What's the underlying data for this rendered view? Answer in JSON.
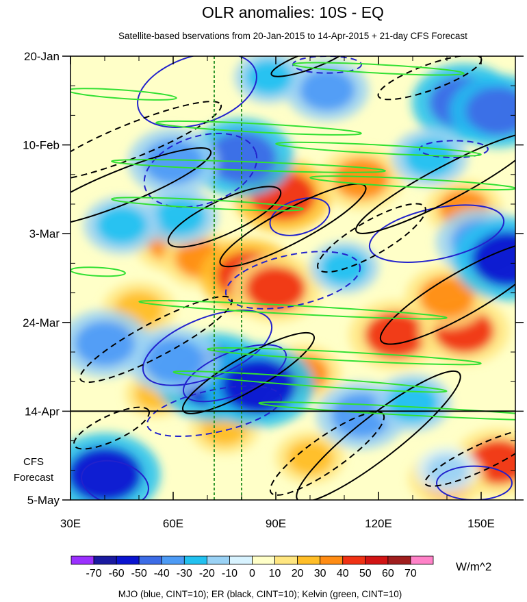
{
  "chart_data": {
    "type": "heatmap",
    "title": "OLR anomalies: 10S - EQ",
    "subtitle": "Satellite-based bservations from 20-Jan-2015 to 14-Apr-2015 + 21-day CFS Forecast",
    "x_axis": {
      "range": [
        30,
        160
      ],
      "ticks": [
        30,
        60,
        90,
        120,
        150
      ],
      "tick_labels": [
        "30E",
        "60E",
        "90E",
        "120E",
        "150E"
      ]
    },
    "y_axis": {
      "start_day": 0,
      "end_day": 105,
      "ticks": [
        {
          "label": "20-Jan",
          "day": 0
        },
        {
          "label": "10-Feb",
          "day": 21
        },
        {
          "label": "3-Mar",
          "day": 42
        },
        {
          "label": "24-Mar",
          "day": 63
        },
        {
          "label": "14-Apr",
          "day": 84
        },
        {
          "label": "5-May",
          "day": 105
        }
      ]
    },
    "observation_end": {
      "label": "14-Apr",
      "day": 84
    },
    "forecast_label": [
      "CFS",
      "Forecast"
    ],
    "reference_longitudes": [
      72,
      80
    ],
    "colorbar": {
      "levels": [
        -80,
        -70,
        -60,
        -50,
        -40,
        -30,
        -20,
        -10,
        0,
        10,
        20,
        30,
        40,
        50,
        60,
        70,
        80
      ],
      "labels": [
        "-70",
        "-60",
        "-50",
        "-40",
        "-30",
        "-20",
        "-10",
        "0",
        "10",
        "20",
        "30",
        "40",
        "50",
        "60",
        "70"
      ],
      "colors": [
        "#9B30FF",
        "#1A1AA0",
        "#0A14D0",
        "#3C6CE6",
        "#4D9BF5",
        "#22C1F0",
        "#9AD2F5",
        "#D8F3FF",
        "#FFFFC8",
        "#FFE680",
        "#FFBE28",
        "#FF8C14",
        "#F03214",
        "#D21414",
        "#A01E1E",
        "#FF82C8"
      ],
      "units": "W/m^2"
    },
    "anomaly_blobs": [
      {
        "lon": 60,
        "day": 44,
        "value": 32
      },
      {
        "lon": 68,
        "day": 48,
        "value": 30
      },
      {
        "lon": 82,
        "day": 52,
        "value": 45
      },
      {
        "lon": 90,
        "day": 55,
        "value": 40
      },
      {
        "lon": 92,
        "day": 33,
        "value": 45
      },
      {
        "lon": 50,
        "day": 60,
        "value": 28
      },
      {
        "lon": 125,
        "day": 66,
        "value": 42
      },
      {
        "lon": 145,
        "day": 65,
        "value": 40
      },
      {
        "lon": 140,
        "day": 57,
        "value": 35
      },
      {
        "lon": 115,
        "day": 29,
        "value": 35
      },
      {
        "lon": 145,
        "day": 36,
        "value": 30
      },
      {
        "lon": 155,
        "day": 96,
        "value": 40
      },
      {
        "lon": 140,
        "day": 100,
        "value": 30
      },
      {
        "lon": 75,
        "day": 88,
        "value": 25
      },
      {
        "lon": 55,
        "day": 80,
        "value": 20
      },
      {
        "lon": 100,
        "day": 95,
        "value": 25
      },
      {
        "lon": 98,
        "day": 75,
        "value": 30
      },
      {
        "lon": 80,
        "day": 24,
        "value": -50
      },
      {
        "lon": 60,
        "day": 25,
        "value": -40
      },
      {
        "lon": 72,
        "day": 76,
        "value": -60
      },
      {
        "lon": 85,
        "day": 78,
        "value": -55
      },
      {
        "lon": 60,
        "day": 72,
        "value": -40
      },
      {
        "lon": 40,
        "day": 99,
        "value": -55
      },
      {
        "lon": 40,
        "day": 68,
        "value": -40
      },
      {
        "lon": 145,
        "day": 11,
        "value": -50
      },
      {
        "lon": 155,
        "day": 13,
        "value": -45
      },
      {
        "lon": 105,
        "day": 8,
        "value": -35
      },
      {
        "lon": 115,
        "day": 85,
        "value": -40
      },
      {
        "lon": 130,
        "day": 82,
        "value": -30
      },
      {
        "lon": 150,
        "day": 44,
        "value": -40
      },
      {
        "lon": 158,
        "day": 48,
        "value": -55
      },
      {
        "lon": 135,
        "day": 24,
        "value": -30
      },
      {
        "lon": 62,
        "day": 38,
        "value": -30
      },
      {
        "lon": 45,
        "day": 40,
        "value": -30
      },
      {
        "lon": 110,
        "day": 50,
        "value": -25
      },
      {
        "lon": 88,
        "day": 5,
        "value": -25
      },
      {
        "lon": 140,
        "day": 98,
        "value": -20
      }
    ],
    "contour_series": [
      {
        "name": "MJO",
        "color": "#2222CC",
        "cint": 10,
        "ellipses": [
          {
            "lon": 67,
            "day": 8,
            "rlon": 18,
            "rday": 8,
            "angle": -18,
            "sign": 1
          },
          {
            "lon": 68,
            "day": 27,
            "rlon": 17,
            "rday": 8,
            "angle": -18,
            "sign": -1
          },
          {
            "lon": 97,
            "day": 38,
            "rlon": 9,
            "rday": 4,
            "angle": -18,
            "sign": 1
          },
          {
            "lon": 137,
            "day": 42,
            "rlon": 20,
            "rday": 6,
            "angle": -12,
            "sign": 1
          },
          {
            "lon": 95,
            "day": 53,
            "rlon": 20,
            "rday": 6,
            "angle": -12,
            "sign": -1
          },
          {
            "lon": 70,
            "day": 69,
            "rlon": 20,
            "rday": 7,
            "angle": -22,
            "sign": 1
          },
          {
            "lon": 78,
            "day": 75,
            "rlon": 16,
            "rday": 5,
            "angle": -22,
            "sign": 1
          },
          {
            "lon": 72,
            "day": 84,
            "rlon": 20,
            "rday": 5,
            "angle": -12,
            "sign": -1
          },
          {
            "lon": 43,
            "day": 101,
            "rlon": 10,
            "rday": 5,
            "angle": 15,
            "sign": 1
          },
          {
            "lon": 148,
            "day": 101,
            "rlon": 11,
            "rday": 4,
            "angle": 0,
            "sign": 1
          },
          {
            "lon": 142,
            "day": 22,
            "rlon": 10,
            "rday": 2,
            "angle": 0,
            "sign": -1
          },
          {
            "lon": 105,
            "day": 2,
            "rlon": 10,
            "rday": 2,
            "angle": 0,
            "sign": -1
          }
        ]
      },
      {
        "name": "ER",
        "color": "#000000",
        "cint": 10,
        "ellipses": [
          {
            "lon": 45,
            "day": 31,
            "rlon": 28,
            "rday": 4,
            "angle": -22,
            "sign": 1
          },
          {
            "lon": 48,
            "day": 20,
            "rlon": 28,
            "rday": 4,
            "angle": -22,
            "sign": -1
          },
          {
            "lon": 75,
            "day": 38,
            "rlon": 18,
            "rday": 4,
            "angle": -25,
            "sign": 1
          },
          {
            "lon": 95,
            "day": 40,
            "rlon": 24,
            "rday": 4,
            "angle": -28,
            "sign": 1
          },
          {
            "lon": 118,
            "day": 43,
            "rlon": 18,
            "rday": 4,
            "angle": -30,
            "sign": -1
          },
          {
            "lon": 145,
            "day": 56,
            "rlon": 28,
            "rday": 5,
            "angle": -30,
            "sign": 1
          },
          {
            "lon": 140,
            "day": 30,
            "rlon": 30,
            "rday": 4,
            "angle": -28,
            "sign": 1
          },
          {
            "lon": 55,
            "day": 67,
            "rlon": 25,
            "rday": 4,
            "angle": -28,
            "sign": -1
          },
          {
            "lon": 82,
            "day": 75,
            "rlon": 22,
            "rday": 4,
            "angle": -30,
            "sign": 1
          },
          {
            "lon": 105,
            "day": 94,
            "rlon": 20,
            "rday": 4,
            "angle": -35,
            "sign": -1
          },
          {
            "lon": 120,
            "day": 90,
            "rlon": 30,
            "rday": 5,
            "angle": -38,
            "sign": 1
          },
          {
            "lon": 150,
            "day": 95,
            "rlon": 18,
            "rday": 3,
            "angle": -25,
            "sign": -1
          },
          {
            "lon": 42,
            "day": 88,
            "rlon": 12,
            "rday": 3,
            "angle": -25,
            "sign": -1
          },
          {
            "lon": 100,
            "day": 1,
            "rlon": 12,
            "rday": 2,
            "angle": -20,
            "sign": 1
          },
          {
            "lon": 135,
            "day": 5,
            "rlon": 16,
            "rday": 3,
            "angle": -20,
            "sign": -1
          }
        ]
      },
      {
        "name": "Kelvin",
        "color": "#33E033",
        "cint": 10,
        "ellipses": [
          {
            "lon": 45,
            "day": 9,
            "rlon": 16,
            "rday": 1.0,
            "angle": 4,
            "sign": 1
          },
          {
            "lon": 85,
            "day": 17,
            "rlon": 30,
            "rday": 1.0,
            "angle": 3,
            "sign": 1
          },
          {
            "lon": 120,
            "day": 22,
            "rlon": 30,
            "rday": 1.0,
            "angle": 3,
            "sign": 1
          },
          {
            "lon": 82,
            "day": 26,
            "rlon": 40,
            "rday": 1.0,
            "angle": 2,
            "sign": 1
          },
          {
            "lon": 130,
            "day": 30,
            "rlon": 30,
            "rday": 1.0,
            "angle": 3,
            "sign": 1
          },
          {
            "lon": 70,
            "day": 35,
            "rlon": 28,
            "rday": 1.0,
            "angle": 3,
            "sign": 1
          },
          {
            "lon": 95,
            "day": 60,
            "rlon": 45,
            "rday": 1.0,
            "angle": 3,
            "sign": 1
          },
          {
            "lon": 110,
            "day": 71,
            "rlon": 40,
            "rday": 1.0,
            "angle": 3,
            "sign": 1
          },
          {
            "lon": 100,
            "day": 77,
            "rlon": 40,
            "rday": 1.0,
            "angle": 4,
            "sign": 1
          },
          {
            "lon": 130,
            "day": 84,
            "rlon": 45,
            "rday": 1.0,
            "angle": 3,
            "sign": 1
          },
          {
            "lon": 120,
            "day": 3,
            "rlon": 25,
            "rday": 1.0,
            "angle": 3,
            "sign": 1
          },
          {
            "lon": 38,
            "day": 51,
            "rlon": 8,
            "rday": 1.0,
            "angle": 3,
            "sign": 1
          }
        ]
      }
    ],
    "footer": "MJO (blue, CINT=10); ER (black, CINT=10); Kelvin (green, CINT=10)"
  }
}
